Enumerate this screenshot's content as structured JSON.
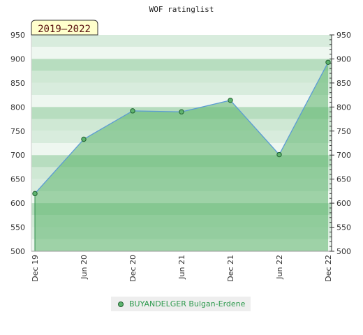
{
  "chart_data": {
    "type": "area",
    "title": "WOF ratinglist",
    "period_label": "2019–2022",
    "categories": [
      "Dec 19",
      "Jun 20",
      "Dec 20",
      "Jun 21",
      "Dec 21",
      "Jun 22",
      "Dec 22"
    ],
    "series": [
      {
        "name": "BUYANDELGER Bulgan-Erdene",
        "values": [
          620,
          733,
          792,
          790,
          814,
          701,
          893
        ]
      }
    ],
    "ylim": [
      500,
      950
    ],
    "yticks": [
      500,
      550,
      600,
      650,
      700,
      750,
      800,
      850,
      900,
      950
    ],
    "y_axis_both_sides": true,
    "grid": "horizontal bands",
    "legend_position": "bottom-center",
    "colors": {
      "line": "#5b9bd5",
      "fill": "#5cb46c",
      "marker": "#5fb46f",
      "marker_border": "#1f5f2f",
      "legend_text": "#2e9a4e",
      "period_box": "#ffffcc"
    }
  }
}
